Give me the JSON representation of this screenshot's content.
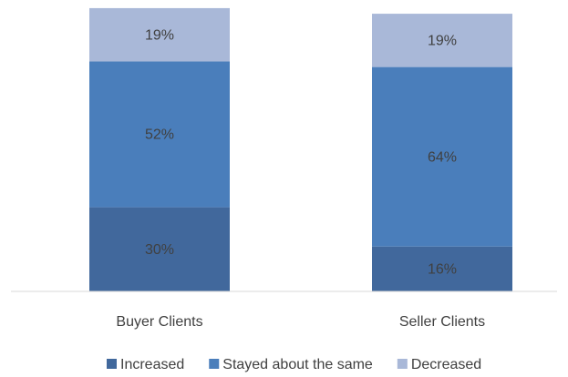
{
  "chart_data": {
    "type": "stacked_bar",
    "categories": [
      "Buyer Clients",
      "Seller Clients"
    ],
    "series": [
      {
        "name": "Increased",
        "color": "#41689c",
        "values": [
          30,
          16
        ],
        "value_labels": [
          "30%",
          "16%"
        ]
      },
      {
        "name": "Stayed about the same",
        "color": "#4a7ebb",
        "values": [
          52,
          64
        ],
        "value_labels": [
          "52%",
          "64%"
        ]
      },
      {
        "name": "Decreased",
        "color": "#a9b8d8",
        "values": [
          19,
          19
        ],
        "value_labels": [
          "19%",
          "19%"
        ]
      }
    ],
    "ylim": [
      0,
      100
    ],
    "legend": "bottom"
  }
}
